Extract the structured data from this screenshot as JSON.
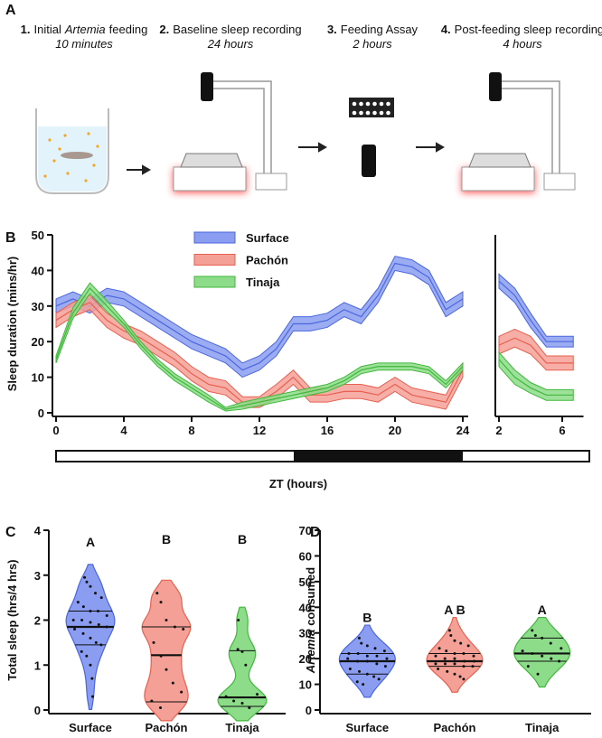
{
  "panels": [
    "A",
    "B",
    "C",
    "D"
  ],
  "steps": [
    {
      "number": "1.",
      "title": [
        "Initial",
        "Artemia",
        "feeding"
      ],
      "duration": "10 minutes"
    },
    {
      "number": "2.",
      "title": [
        "Baseline sleep recording"
      ],
      "duration": "24 hours"
    },
    {
      "number": "3.",
      "title": [
        "Feeding Assay"
      ],
      "duration": "2 hours"
    },
    {
      "number": "4.",
      "title": [
        "Post-feeding sleep recording"
      ],
      "duration": "4 hours"
    }
  ],
  "chart_data": [
    {
      "type": "line",
      "xlabel": "ZT (hours)",
      "ylabel": "Sleep duration (mins/hr)",
      "legend": "top",
      "x": [
        0,
        1,
        2,
        3,
        4,
        5,
        6,
        7,
        8,
        9,
        10,
        11,
        12,
        13,
        14,
        15,
        16,
        17,
        18,
        19,
        20,
        21,
        22,
        23,
        24
      ],
      "xlim": [
        0,
        24
      ],
      "xticks": [
        0,
        4,
        8,
        12,
        16,
        20,
        24
      ],
      "ylim": [
        0,
        50
      ],
      "yticks": [
        0,
        10,
        20,
        30,
        40,
        50
      ],
      "series": [
        {
          "name": "Surface",
          "color": "#4a66e0",
          "fill": "#8a9df0",
          "values": [
            30,
            32,
            30,
            33,
            32,
            29,
            26,
            23,
            20,
            18,
            16,
            12,
            14,
            18,
            25,
            25,
            26,
            29,
            27,
            33,
            42,
            41,
            38,
            29,
            32
          ],
          "error": [
            2,
            2,
            2,
            2,
            2,
            2,
            2,
            2,
            2,
            2,
            2,
            2,
            2,
            2,
            2,
            2,
            2,
            2,
            2,
            2,
            2,
            2,
            2,
            2,
            2
          ]
        },
        {
          "name": "Pachón",
          "color": "#e8604f",
          "fill": "#f4a096",
          "values": [
            26,
            29,
            31,
            26,
            23,
            21,
            18,
            15,
            11,
            8,
            7,
            3,
            3,
            6,
            10,
            5,
            5,
            6,
            6,
            5,
            8,
            5,
            4,
            3,
            12
          ],
          "error": [
            2,
            2,
            2,
            2,
            2,
            2,
            2,
            2,
            2,
            2,
            2,
            1.5,
            1.5,
            2,
            2,
            2,
            2,
            2,
            2,
            2,
            2,
            2,
            2,
            2,
            2
          ]
        },
        {
          "name": "Tinaja",
          "color": "#3fb83a",
          "fill": "#8ddc8a",
          "values": [
            15,
            28,
            35,
            30,
            25,
            19,
            14,
            10,
            7,
            4,
            1,
            2,
            3,
            4,
            5,
            6,
            7,
            9,
            12,
            13,
            13,
            13,
            12,
            8,
            13
          ],
          "error": [
            1,
            1.5,
            1.5,
            1.5,
            1,
            1,
            1,
            1,
            1,
            1,
            0.5,
            1,
            1,
            1,
            1,
            1,
            1,
            1,
            1,
            1,
            1,
            1,
            1,
            1,
            1
          ]
        }
      ]
    },
    {
      "type": "line",
      "x": [
        2,
        3,
        4,
        5,
        6.7
      ],
      "xlim": [
        2,
        7
      ],
      "xticks": [
        2,
        6
      ],
      "ylim": [
        0,
        50
      ],
      "series": [
        {
          "color": "#4a66e0",
          "fill": "#8a9df0",
          "values": [
            37,
            33,
            26,
            20,
            20
          ],
          "error": [
            2,
            2,
            2,
            1.5,
            1.5
          ]
        },
        {
          "color": "#e8604f",
          "fill": "#f4a096",
          "values": [
            19,
            21,
            19,
            14,
            14
          ],
          "error": [
            2.5,
            2.5,
            2.5,
            2,
            2
          ]
        },
        {
          "color": "#3fb83a",
          "fill": "#8ddc8a",
          "values": [
            15,
            10,
            7,
            5,
            5
          ],
          "error": [
            2,
            2,
            1.5,
            1.5,
            1.5
          ]
        }
      ]
    },
    {
      "type": "violin",
      "ylabel": [
        "Total sleep (hrs/4 hrs)"
      ],
      "ylim": [
        0,
        4
      ],
      "yticks": [
        0,
        1,
        2,
        3,
        4
      ],
      "categories": [
        "Surface",
        "Pachón",
        "Tinaja"
      ],
      "groups": [
        {
          "color": "#4a66e0",
          "fill": "#8a9df0",
          "label": "A",
          "median": 1.85,
          "q1": 1.45,
          "q3": 2.2,
          "points": [
            2.95,
            2.85,
            2.75,
            2.6,
            2.5,
            2.4,
            2.3,
            2.2,
            2.2,
            2.1,
            2.0,
            2.0,
            1.95,
            1.9,
            1.85,
            1.8,
            1.7,
            1.6,
            1.5,
            1.45,
            1.3,
            1.2,
            1.0,
            0.7,
            0.3
          ]
        },
        {
          "color": "#e8604f",
          "fill": "#f4a096",
          "label": "B",
          "median": 1.22,
          "q1": 0.18,
          "q3": 1.85,
          "points": [
            2.6,
            2.4,
            2.0,
            1.85,
            1.8,
            1.5,
            1.2,
            0.9,
            0.6,
            0.4,
            0.2,
            0.05
          ]
        },
        {
          "color": "#3fb83a",
          "fill": "#8ddc8a",
          "label": "B",
          "median": 0.28,
          "q1": 0.08,
          "q3": 1.32,
          "points": [
            2.0,
            1.35,
            1.3,
            1.0,
            0.35,
            0.3,
            0.2,
            0.15,
            0.05
          ]
        }
      ]
    },
    {
      "type": "violin",
      "ylabel": [
        "Artemia",
        "consumed"
      ],
      "ylim": [
        0,
        70
      ],
      "yticks": [
        0,
        10,
        20,
        30,
        40,
        50,
        60,
        70
      ],
      "categories": [
        "Surface",
        "Pachón",
        "Tinaja"
      ],
      "groups": [
        {
          "color": "#4a66e0",
          "fill": "#8a9df0",
          "label": "B",
          "median": 19,
          "q1": 14,
          "q3": 22,
          "points": [
            28,
            26,
            25,
            24,
            23,
            22,
            22,
            21,
            21,
            20,
            20,
            19,
            19,
            18,
            17,
            16,
            15,
            14,
            13,
            12,
            11,
            10
          ]
        },
        {
          "color": "#e8604f",
          "fill": "#f4a096",
          "label": "A B",
          "median": 19,
          "q1": 17,
          "q3": 22,
          "points": [
            31,
            29,
            27,
            26,
            25,
            24,
            23,
            22,
            22,
            21,
            21,
            20,
            20,
            19,
            19,
            18,
            18,
            18,
            17,
            17,
            16,
            15,
            14,
            13,
            12
          ]
        },
        {
          "color": "#3fb83a",
          "fill": "#8ddc8a",
          "label": "A",
          "median": 22,
          "q1": 19,
          "q3": 28,
          "points": [
            31,
            29,
            28,
            26,
            24,
            23,
            22,
            21,
            20,
            19,
            17,
            14
          ]
        }
      ]
    }
  ]
}
